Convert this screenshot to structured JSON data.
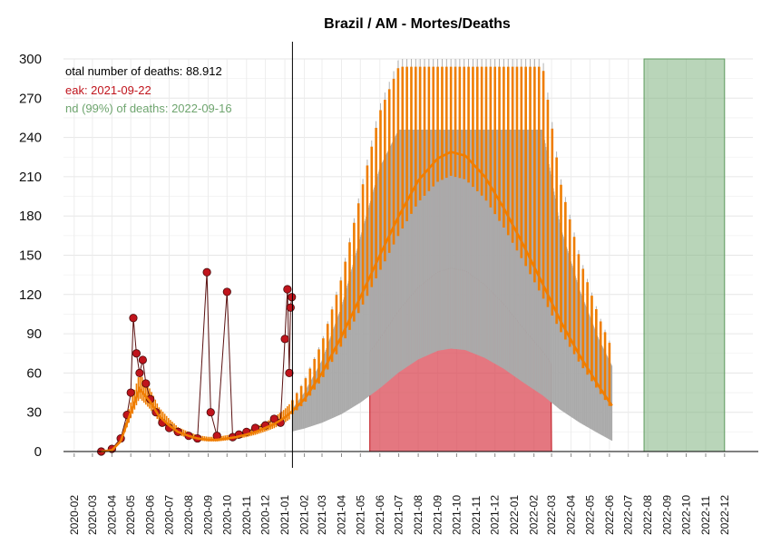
{
  "chart_data": {
    "type": "line",
    "title": "Brazil / AM - Mortes/Deaths",
    "xlabel": "",
    "ylabel": "",
    "ylim": [
      0,
      300
    ],
    "yticks": [
      0,
      30,
      60,
      90,
      120,
      150,
      180,
      210,
      240,
      270,
      300
    ],
    "x_tick_labels": [
      "2020-02",
      "2020-03",
      "2020-04",
      "2020-05",
      "2020-06",
      "2020-07",
      "2020-08",
      "2020-09",
      "2020-10",
      "2020-11",
      "2020-12",
      "2021-01",
      "2021-02",
      "2021-03",
      "2021-04",
      "2021-05",
      "2021-06",
      "2021-07",
      "2021-08",
      "2021-09",
      "2021-10",
      "2021-11",
      "2021-12",
      "2022-01",
      "2022-02",
      "2022-03",
      "2022-04",
      "2022-05",
      "2022-06",
      "2022-07",
      "2022-08",
      "2022-09",
      "2022-10",
      "2022-11",
      "2022-12"
    ],
    "grid": true,
    "annotations": {
      "total": "otal number of deaths: 88.912",
      "peak": "eak: 2021-09-22",
      "end": "nd (99%) of deaths: 2022-09-16"
    },
    "colors": {
      "observed_points": "#c0141c",
      "observed_line": "#5a1010",
      "fit_line": "#ef7d00",
      "uncertainty": "#aaaaaa",
      "peak_band": "#d9434f",
      "end_band": "#7fb27f",
      "annotation_total": "#000000",
      "annotation_peak": "#c0141c",
      "annotation_end": "#6fa56f"
    },
    "today": "2021-01-13",
    "peak_band": {
      "start": "2021-05-16",
      "end": "2022-03-01"
    },
    "end_band": {
      "start": "2022-07-26",
      "end": "2022-12-01"
    },
    "series": [
      {
        "kind": "observed",
        "x": [
          "2020-03-15",
          "2020-04-01",
          "2020-04-15",
          "2020-04-25",
          "2020-05-01",
          "2020-05-05",
          "2020-05-10",
          "2020-05-15",
          "2020-05-20",
          "2020-05-25",
          "2020-06-01",
          "2020-06-10",
          "2020-06-20",
          "2020-07-01",
          "2020-07-15",
          "2020-08-01",
          "2020-08-15",
          "2020-08-30",
          "2020-09-05",
          "2020-09-15",
          "2020-10-01",
          "2020-10-10",
          "2020-10-20",
          "2020-11-01",
          "2020-11-15",
          "2020-12-01",
          "2020-12-15",
          "2020-12-25",
          "2021-01-01",
          "2021-01-05",
          "2021-01-08",
          "2021-01-10",
          "2021-01-12"
        ],
        "y": [
          0,
          2,
          10,
          28,
          45,
          102,
          75,
          60,
          70,
          52,
          40,
          30,
          22,
          18,
          15,
          12,
          10,
          137,
          30,
          12,
          122,
          11,
          13,
          15,
          18,
          20,
          25,
          22,
          86,
          124,
          60,
          110,
          118
        ]
      },
      {
        "kind": "fit",
        "x": [
          "2020-03-15",
          "2020-04-01",
          "2020-04-15",
          "2020-05-01",
          "2020-05-15",
          "2020-06-01",
          "2020-06-15",
          "2020-07-01",
          "2020-07-15",
          "2020-08-01",
          "2020-08-15",
          "2020-09-01",
          "2020-09-15",
          "2020-10-01",
          "2020-10-15",
          "2020-11-01",
          "2020-11-15",
          "2020-12-01",
          "2020-12-15",
          "2021-01-01",
          "2021-01-13",
          "2021-02-01",
          "2021-03-01",
          "2021-04-01",
          "2021-05-01",
          "2021-06-01",
          "2021-07-01",
          "2021-08-01",
          "2021-09-01",
          "2021-09-22",
          "2021-10-15",
          "2021-11-15",
          "2021-12-15",
          "2022-01-15",
          "2022-02-15",
          "2022-03-15",
          "2022-04-15",
          "2022-05-15",
          "2022-06-05"
        ],
        "y": [
          0,
          1,
          8,
          30,
          48,
          38,
          27,
          20,
          15,
          12,
          10,
          9,
          9,
          10,
          11,
          13,
          15,
          18,
          21,
          26,
          31,
          40,
          60,
          88,
          118,
          150,
          180,
          207,
          224,
          229,
          226,
          210,
          186,
          158,
          128,
          100,
          73,
          50,
          35
        ]
      },
      {
        "kind": "upper_band",
        "x": [
          "2021-01-13",
          "2021-02-01",
          "2021-03-01",
          "2021-04-01",
          "2021-05-01",
          "2021-06-01",
          "2021-07-01",
          "2021-08-01",
          "2021-09-01",
          "2021-09-22",
          "2021-10-15",
          "2021-11-15",
          "2021-12-15",
          "2022-01-15",
          "2022-02-15",
          "2022-03-15",
          "2022-04-15",
          "2022-05-15",
          "2022-06-05"
        ],
        "y": [
          40,
          55,
          85,
          135,
          200,
          265,
          300,
          300,
          300,
          300,
          300,
          300,
          300,
          300,
          300,
          210,
          150,
          105,
          80
        ]
      },
      {
        "kind": "lower_band",
        "x": [
          "2021-01-13",
          "2021-02-01",
          "2021-03-01",
          "2021-04-01",
          "2021-05-01",
          "2021-06-01",
          "2021-07-01",
          "2021-08-01",
          "2021-09-01",
          "2021-09-22",
          "2021-10-15",
          "2021-11-15",
          "2021-12-15",
          "2022-01-15",
          "2022-02-15",
          "2022-03-15",
          "2022-04-15",
          "2022-05-15",
          "2022-06-05"
        ],
        "y": [
          28,
          32,
          40,
          52,
          68,
          88,
          110,
          128,
          140,
          143,
          141,
          130,
          115,
          96,
          78,
          58,
          40,
          25,
          15
        ]
      }
    ]
  }
}
